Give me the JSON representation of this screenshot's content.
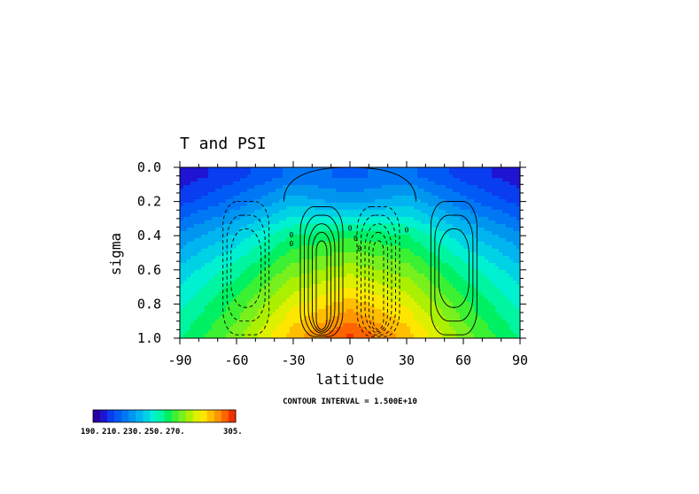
{
  "chart_data": {
    "type": "heatmap",
    "title": "T and PSI",
    "xlabel": "latitude",
    "ylabel": "sigma",
    "xlim": [
      -90,
      90
    ],
    "ylim": [
      1.0,
      0.0
    ],
    "x_ticks": [
      "-90",
      "-60",
      "-30",
      "0",
      "30",
      "60",
      "90"
    ],
    "y_ticks": [
      "0.0",
      "0.2",
      "0.4",
      "0.6",
      "0.8",
      "1.0"
    ],
    "contour_note": "CONTOUR INTERVAL = 1.500E+10",
    "colorbar": {
      "labels": [
        "190.",
        "210.",
        "230.",
        "250.",
        "270.",
        "305."
      ],
      "min": 190,
      "max": 305,
      "colors": [
        "#2800a0",
        "#1e14d2",
        "#0a3cf0",
        "#005af5",
        "#0078f5",
        "#0096f0",
        "#00b4f0",
        "#00d2e6",
        "#00f0d2",
        "#00f5a0",
        "#00f064",
        "#3cf032",
        "#78f01e",
        "#aaf000",
        "#dcf000",
        "#ffe600",
        "#ffbe00",
        "#ff9600",
        "#ff6400",
        "#f03200"
      ]
    },
    "temperature_field": {
      "description_lat": [
        -90,
        -60,
        -30,
        0,
        30,
        60,
        90
      ],
      "sigma": [
        0.05,
        0.2,
        0.4,
        0.6,
        0.8,
        0.98
      ],
      "values": [
        [
          198,
          205,
          215,
          212,
          215,
          205,
          198
        ],
        [
          205,
          215,
          228,
          222,
          228,
          215,
          205
        ],
        [
          220,
          232,
          248,
          252,
          248,
          232,
          220
        ],
        [
          232,
          245,
          262,
          268,
          262,
          245,
          232
        ],
        [
          240,
          255,
          275,
          285,
          275,
          255,
          240
        ],
        [
          246,
          262,
          285,
          300,
          285,
          262,
          246
        ]
      ]
    },
    "streamfunction_cells": [
      {
        "lat": -55,
        "sense": "negative"
      },
      {
        "lat": -15,
        "sense": "positive"
      },
      {
        "lat": 15,
        "sense": "negative"
      },
      {
        "lat": 55,
        "sense": "positive"
      }
    ],
    "contour_labels": [
      "0",
      "0",
      "0",
      "0",
      "0",
      "0"
    ]
  }
}
